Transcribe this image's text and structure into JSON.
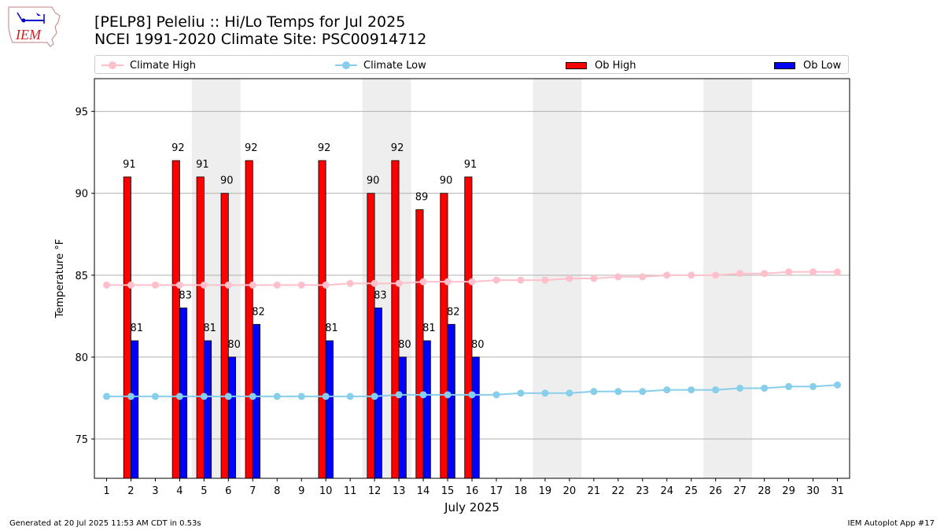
{
  "header": {
    "logo_text": "IEM",
    "title_line1": "[PELP8] Peleliu :: Hi/Lo Temps for Jul 2025",
    "title_line2": "NCEI 1991-2020 Climate Site: PSC00914712"
  },
  "legend": {
    "climate_high": "Climate High",
    "climate_low": "Climate Low",
    "ob_high": "Ob High",
    "ob_low": "Ob Low"
  },
  "colors": {
    "climate_high": "#ffc0cb",
    "climate_low": "#87ceeb",
    "ob_high": "#ff0000",
    "ob_low": "#0000ff",
    "weekend_shade": "#eeeeee",
    "grid": "#b0b0b0"
  },
  "footer": {
    "generated": "Generated at 20 Jul 2025 11:53 AM CDT in 0.53s",
    "app": "IEM Autoplot App #17"
  },
  "chart_data": {
    "type": "bar",
    "xlabel": "July 2025",
    "ylabel": "Temperature °F",
    "ylim": [
      72.6,
      97
    ],
    "yticks": [
      75,
      80,
      85,
      90,
      95
    ],
    "grid": "horizontal",
    "legend_position": "top",
    "categories": [
      1,
      2,
      3,
      4,
      5,
      6,
      7,
      8,
      9,
      10,
      11,
      12,
      13,
      14,
      15,
      16,
      17,
      18,
      19,
      20,
      21,
      22,
      23,
      24,
      25,
      26,
      27,
      28,
      29,
      30,
      31
    ],
    "shaded_days": [
      [
        5,
        6
      ],
      [
        12,
        13
      ],
      [
        19,
        20
      ],
      [
        26,
        27
      ]
    ],
    "series": [
      {
        "name": "Climate High",
        "kind": "line",
        "values": [
          84.4,
          84.4,
          84.4,
          84.4,
          84.4,
          84.4,
          84.4,
          84.4,
          84.4,
          84.4,
          84.5,
          84.5,
          84.5,
          84.6,
          84.6,
          84.6,
          84.7,
          84.7,
          84.7,
          84.8,
          84.8,
          84.9,
          84.9,
          85.0,
          85.0,
          85.0,
          85.1,
          85.1,
          85.2,
          85.2,
          85.2
        ]
      },
      {
        "name": "Climate Low",
        "kind": "line",
        "values": [
          77.6,
          77.6,
          77.6,
          77.6,
          77.6,
          77.6,
          77.6,
          77.6,
          77.6,
          77.6,
          77.6,
          77.6,
          77.7,
          77.7,
          77.7,
          77.7,
          77.7,
          77.8,
          77.8,
          77.8,
          77.9,
          77.9,
          77.9,
          78.0,
          78.0,
          78.0,
          78.1,
          78.1,
          78.2,
          78.2,
          78.3
        ]
      },
      {
        "name": "Ob High",
        "kind": "bar",
        "values": [
          null,
          91,
          null,
          92,
          91,
          90,
          92,
          null,
          null,
          92,
          null,
          90,
          92,
          89,
          90,
          91,
          null,
          null,
          null,
          null,
          null,
          null,
          null,
          null,
          null,
          null,
          null,
          null,
          null,
          null,
          null
        ]
      },
      {
        "name": "Ob Low",
        "kind": "bar",
        "values": [
          null,
          81,
          null,
          83,
          81,
          80,
          82,
          null,
          null,
          81,
          null,
          83,
          80,
          81,
          82,
          80,
          null,
          null,
          null,
          null,
          null,
          null,
          null,
          null,
          null,
          null,
          null,
          null,
          null,
          null,
          null
        ]
      }
    ]
  }
}
